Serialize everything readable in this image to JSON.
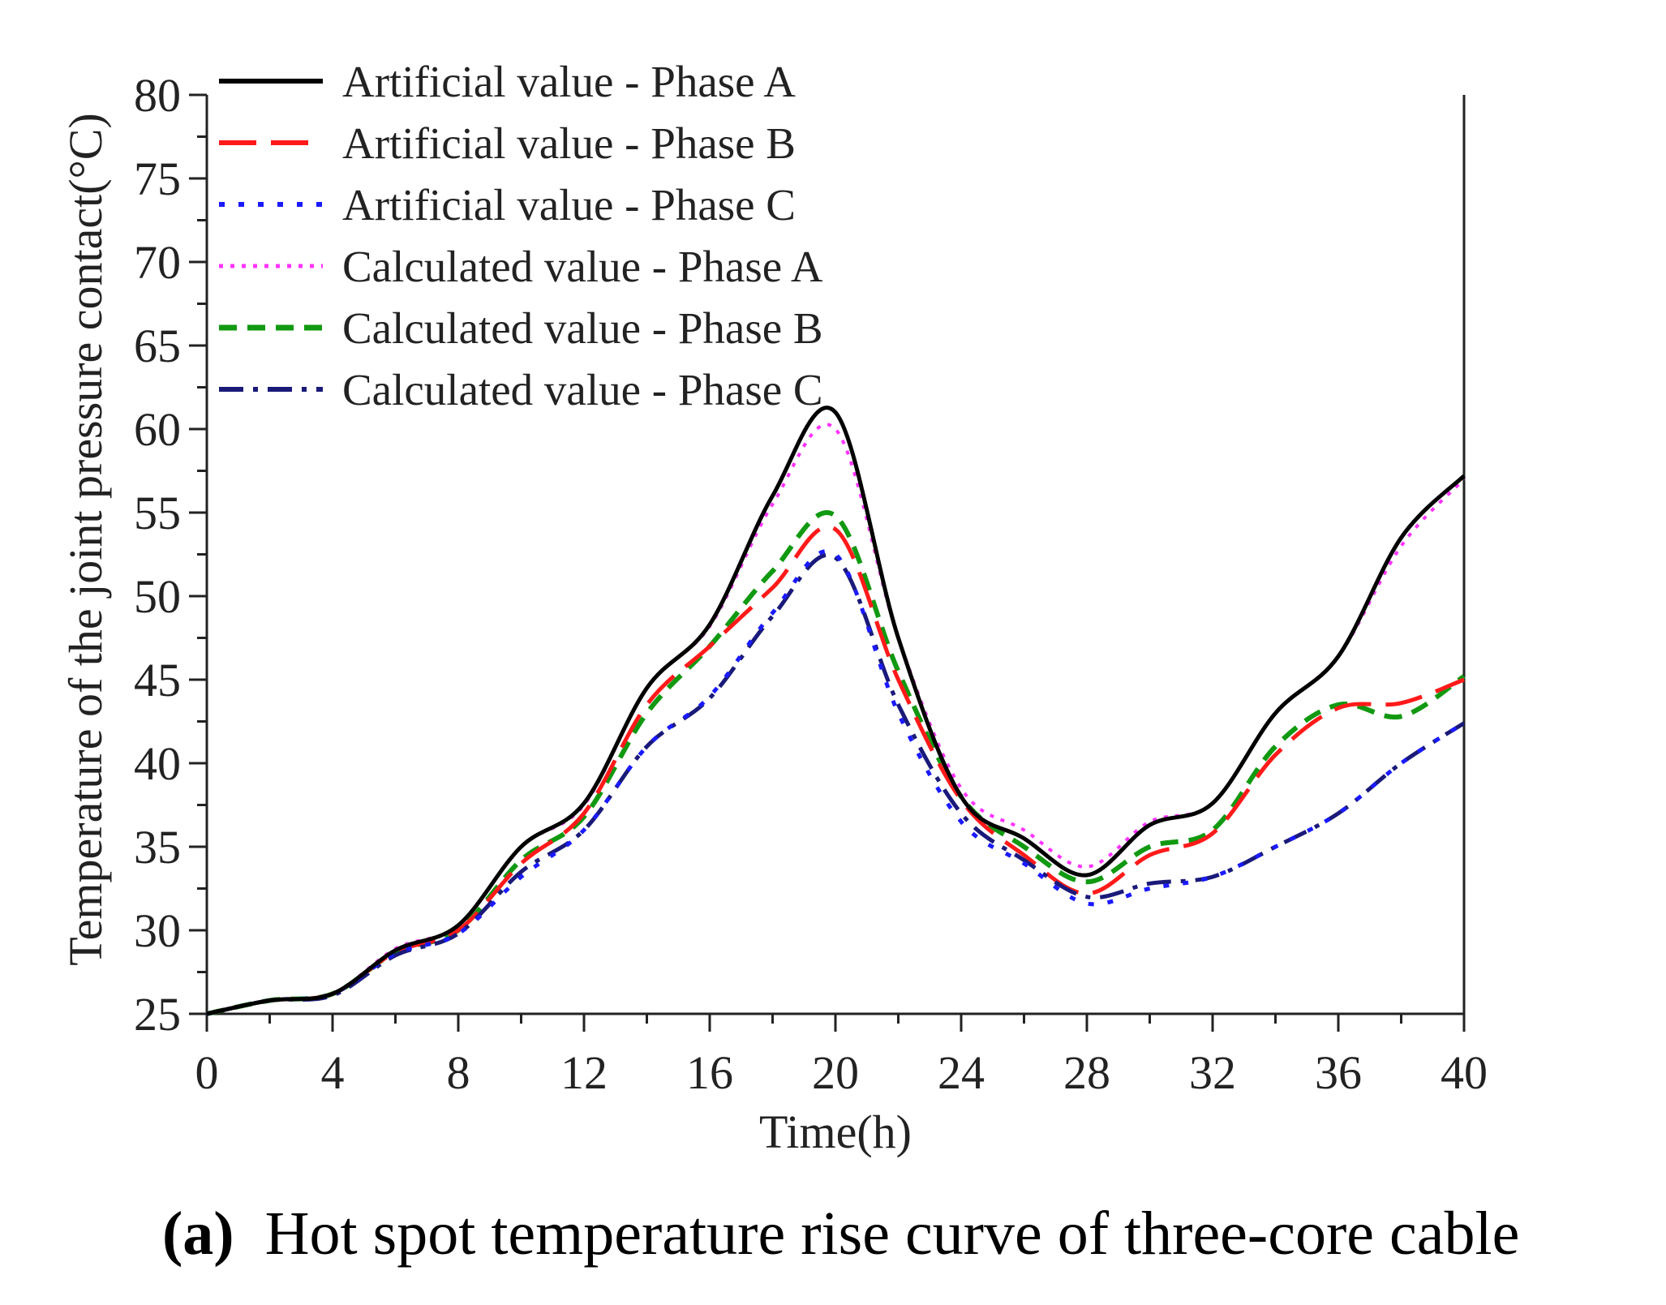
{
  "chart_data": {
    "type": "line",
    "xlabel": "Time(h)",
    "ylabel": "Temperature of the joint pressure contact(°C)",
    "xlim": [
      0,
      40
    ],
    "ylim": [
      25,
      80
    ],
    "xticks": [
      0,
      4,
      8,
      12,
      16,
      20,
      24,
      28,
      32,
      36,
      40
    ],
    "yticks": [
      25,
      30,
      35,
      40,
      45,
      50,
      55,
      60,
      65,
      70,
      75,
      80
    ],
    "grid": false,
    "legend_position": "top-left",
    "series": [
      {
        "name": "Artificial value - Phase A",
        "color": "#000000",
        "dash": "solid",
        "x": [
          0,
          2,
          4,
          6,
          8,
          10,
          12,
          14,
          16,
          18,
          20,
          22,
          24,
          26,
          28,
          30,
          32,
          34,
          36,
          38,
          40
        ],
        "y": [
          25,
          25.8,
          26.2,
          28.8,
          30.3,
          35,
          37.6,
          44.5,
          48.3,
          56,
          61,
          47.5,
          38,
          35.5,
          33.3,
          36.3,
          37.6,
          43,
          46.4,
          53.5,
          57.2
        ]
      },
      {
        "name": "Artificial value - Phase B",
        "color": "#ff1a1a",
        "dash": "long-dash",
        "x": [
          0,
          2,
          4,
          6,
          8,
          10,
          12,
          14,
          16,
          18,
          20,
          22,
          24,
          26,
          28,
          30,
          32,
          34,
          36,
          38,
          40
        ],
        "y": [
          25,
          25.8,
          26.2,
          28.7,
          30,
          34,
          37,
          43.5,
          47,
          50.5,
          54,
          45,
          37.8,
          34.5,
          32.2,
          34.5,
          35.8,
          40.5,
          43.3,
          43.6,
          45
        ]
      },
      {
        "name": "Artificial value - Phase C",
        "color": "#1a1aff",
        "dash": "dot",
        "x": [
          0,
          2,
          4,
          6,
          8,
          10,
          12,
          14,
          16,
          18,
          20,
          22,
          24,
          26,
          28,
          30,
          32,
          34,
          36,
          38,
          40
        ],
        "y": [
          25,
          25.8,
          26.2,
          28.6,
          29.8,
          33.2,
          36,
          41,
          44,
          49,
          52.5,
          43,
          36.5,
          34,
          31.6,
          32.5,
          33.2,
          35,
          37,
          40,
          42.4
        ]
      },
      {
        "name": "Calculated value - Phase A",
        "color": "#ff33ff",
        "dash": "dot",
        "x": [
          0,
          2,
          4,
          6,
          8,
          10,
          12,
          14,
          16,
          18,
          20,
          22,
          24,
          26,
          28,
          30,
          32,
          34,
          36,
          38,
          40
        ],
        "y": [
          25,
          25.8,
          26.2,
          28.9,
          30.3,
          35,
          37.5,
          44.5,
          48.2,
          55.5,
          60,
          47.5,
          38.5,
          36,
          33.8,
          36.5,
          37.6,
          43,
          46.4,
          53,
          57
        ]
      },
      {
        "name": "Calculated value - Phase B",
        "color": "#119911",
        "dash": "dash",
        "x": [
          0,
          2,
          4,
          6,
          8,
          10,
          12,
          14,
          16,
          18,
          20,
          22,
          24,
          26,
          28,
          30,
          32,
          34,
          36,
          38,
          40
        ],
        "y": [
          25,
          25.8,
          26.2,
          28.7,
          30,
          34.2,
          36.8,
          43,
          47,
          51.5,
          54.8,
          45.5,
          38,
          35,
          32.9,
          35,
          36,
          41,
          43.5,
          42.8,
          45.2
        ]
      },
      {
        "name": "Calculated value - Phase C",
        "color": "#1a1a7a",
        "dash": "dash-dot",
        "x": [
          0,
          2,
          4,
          6,
          8,
          10,
          12,
          14,
          16,
          18,
          20,
          22,
          24,
          26,
          28,
          30,
          32,
          34,
          36,
          38,
          40
        ],
        "y": [
          25,
          25.8,
          26.1,
          28.5,
          29.8,
          33.5,
          36,
          41,
          43.9,
          48.8,
          52.3,
          43.5,
          37,
          34.2,
          32,
          32.8,
          33.2,
          35,
          37,
          40,
          42.4
        ]
      }
    ]
  },
  "caption": {
    "label": "(a)",
    "text": "Hot spot temperature rise curve of three-core cable"
  }
}
